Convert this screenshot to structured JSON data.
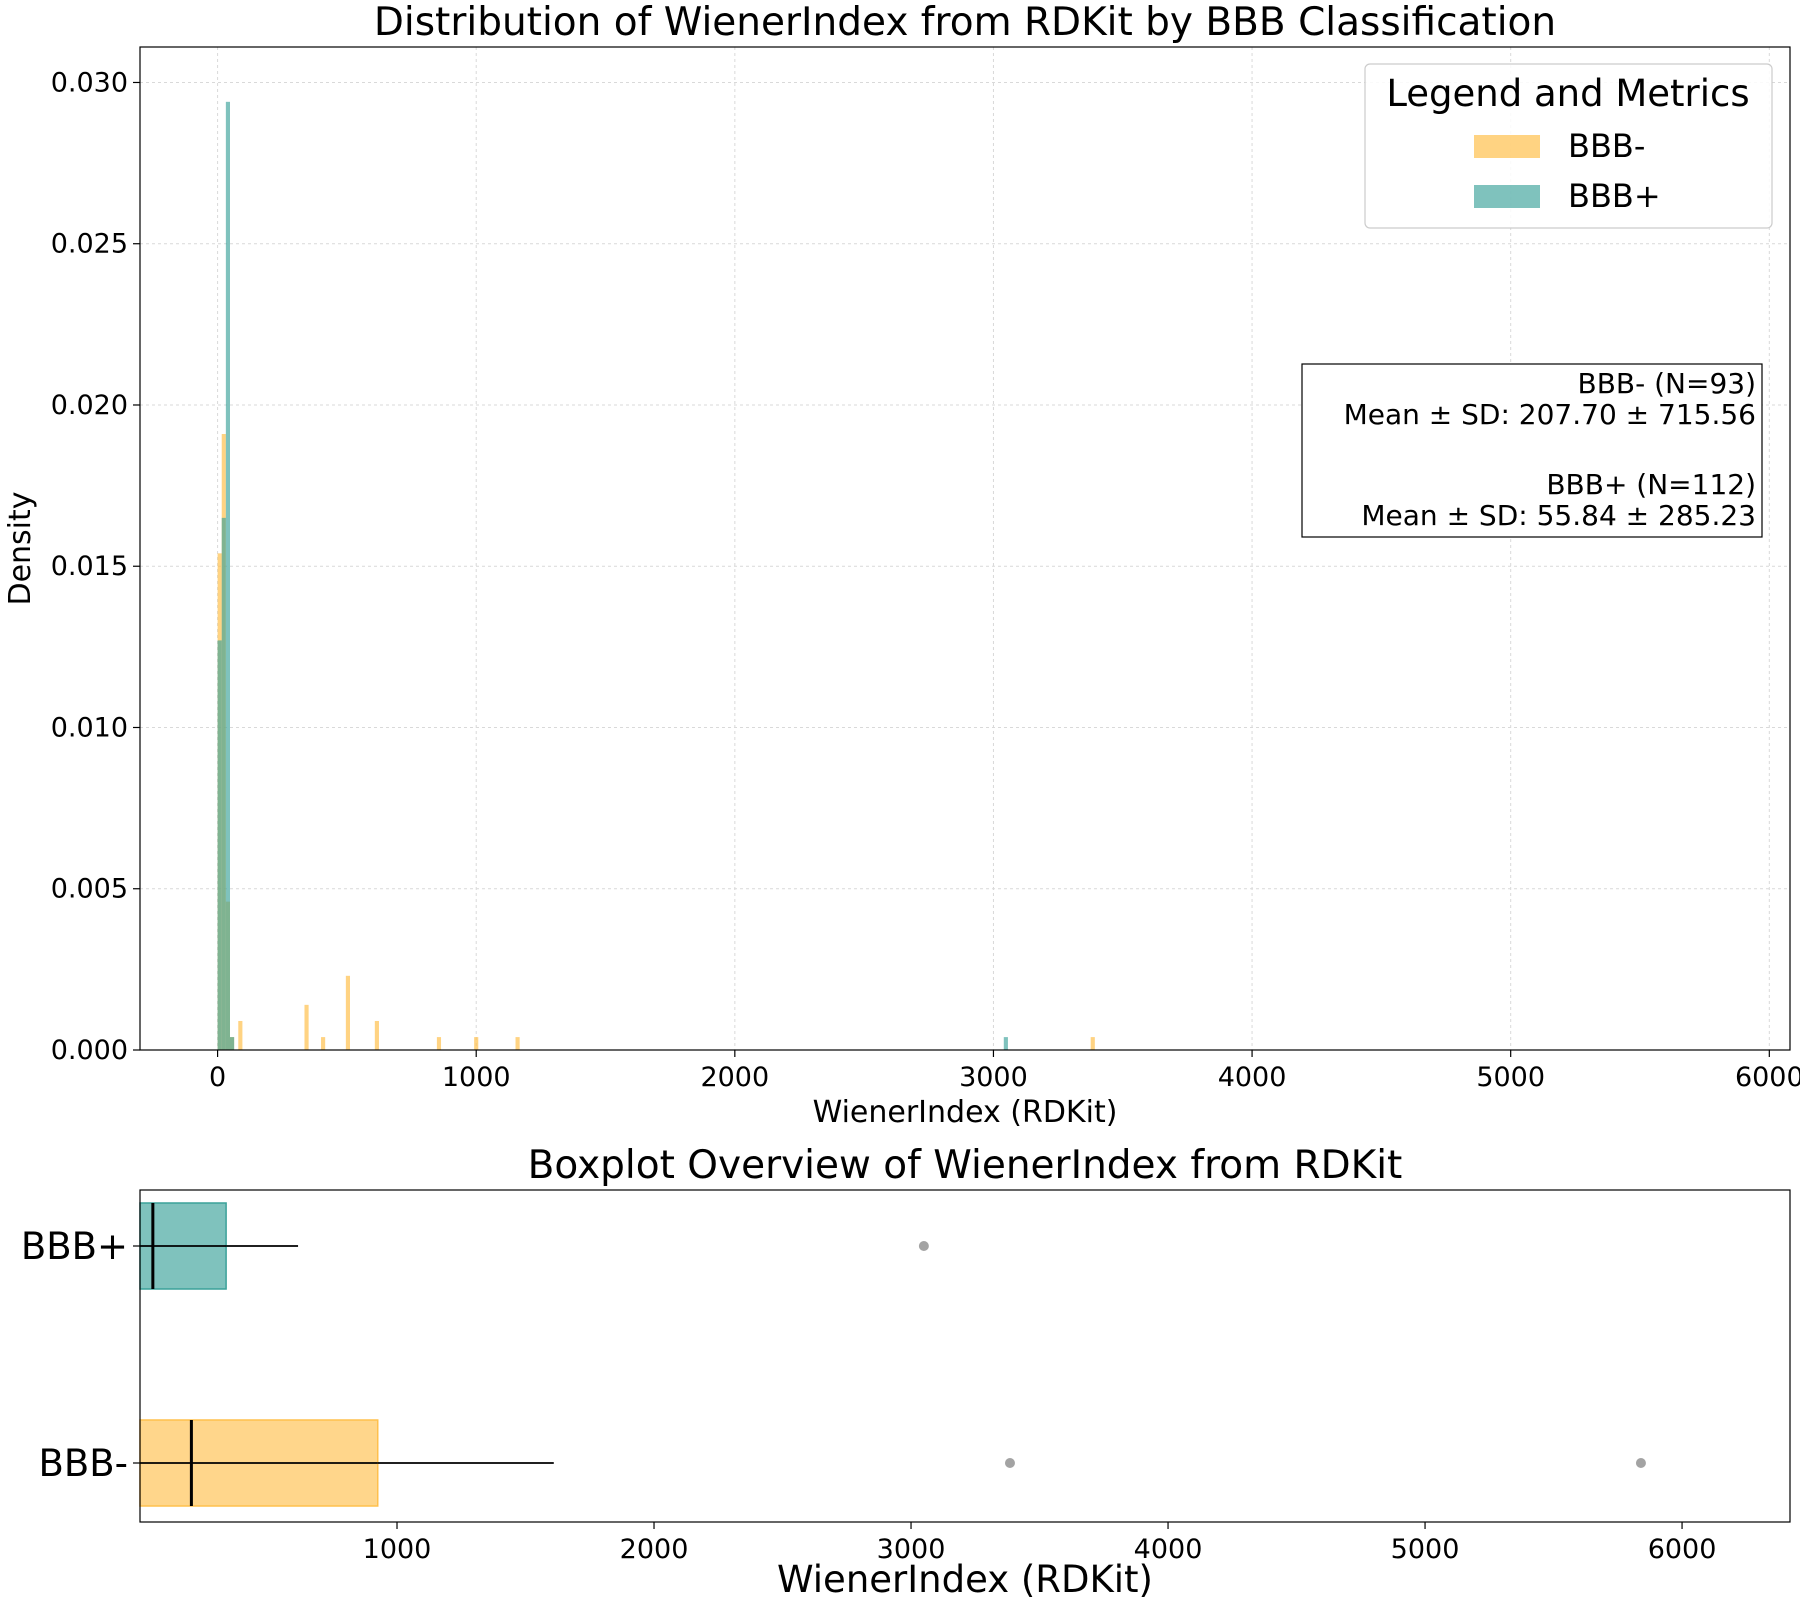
{
  "chart_data": [
    {
      "type": "histogram",
      "title": "Distribution of WienerIndex from RDKit by BBB Classification",
      "xlabel": "WienerIndex (RDKit)",
      "ylabel": "Density",
      "xlim": [
        -300,
        6080
      ],
      "ylim": [
        0,
        0.0311
      ],
      "xticks": [
        0,
        1000,
        2000,
        3000,
        4000,
        5000,
        6000
      ],
      "yticks": [
        0.0,
        0.005,
        0.01,
        0.015,
        0.02,
        0.025,
        0.03
      ],
      "ytick_labels": [
        "0.000",
        "0.005",
        "0.010",
        "0.015",
        "0.020",
        "0.025",
        "0.030"
      ],
      "grid": true,
      "bin_width": 16,
      "series": [
        {
          "name": "BBB-",
          "color": "#FFC04D",
          "opacity": 0.7,
          "bins": [
            {
              "x": 8,
              "y": 0.0154
            },
            {
              "x": 24,
              "y": 0.0191
            },
            {
              "x": 40,
              "y": 0.0046
            },
            {
              "x": 56,
              "y": 0.0004
            },
            {
              "x": 88,
              "y": 0.0009
            },
            {
              "x": 344,
              "y": 0.0014
            },
            {
              "x": 408,
              "y": 0.0004
            },
            {
              "x": 504,
              "y": 0.0023
            },
            {
              "x": 616,
              "y": 0.0009
            },
            {
              "x": 856,
              "y": 0.0004
            },
            {
              "x": 1000,
              "y": 0.0004
            },
            {
              "x": 1160,
              "y": 0.0004
            },
            {
              "x": 3384,
              "y": 0.0004
            }
          ]
        },
        {
          "name": "BBB+",
          "color": "#3AA199",
          "opacity": 0.65,
          "bins": [
            {
              "x": 8,
              "y": 0.0127
            },
            {
              "x": 24,
              "y": 0.0165
            },
            {
              "x": 40,
              "y": 0.0294
            },
            {
              "x": 56,
              "y": 0.0004
            },
            {
              "x": 3048,
              "y": 0.0004
            }
          ]
        }
      ],
      "legend": {
        "title": "Legend and Metrics",
        "position": "top-right",
        "entries": [
          "BBB-",
          "BBB+"
        ]
      },
      "stats_box": {
        "position": "right",
        "lines": [
          "BBB- (N=93)",
          "Mean ± SD: 207.70 ± 715.56",
          "",
          "BBB+ (N=112)",
          "Mean ± SD: 55.84 ± 285.23"
        ]
      }
    },
    {
      "type": "boxplot",
      "title": "Boxplot Overview of WienerIndex from RDKit",
      "xlabel": "WienerIndex (RDKit)",
      "xlim": [
        0,
        6420
      ],
      "xticks": [
        1000,
        2000,
        3000,
        4000,
        5000,
        6000
      ],
      "categories": [
        "BBB+",
        "BBB-"
      ],
      "boxes": [
        {
          "name": "BBB+",
          "color": "#3AA199",
          "q1": 0,
          "median": 50,
          "q3": 335,
          "whisker_low": 0,
          "whisker_high": 615,
          "outliers": [
            3050
          ]
        },
        {
          "name": "BBB-",
          "color": "#FFC04D",
          "q1": 0,
          "median": 200,
          "q3": 925,
          "whisker_low": 0,
          "whisker_high": 1610,
          "outliers": [
            3385,
            5840
          ]
        }
      ]
    }
  ]
}
